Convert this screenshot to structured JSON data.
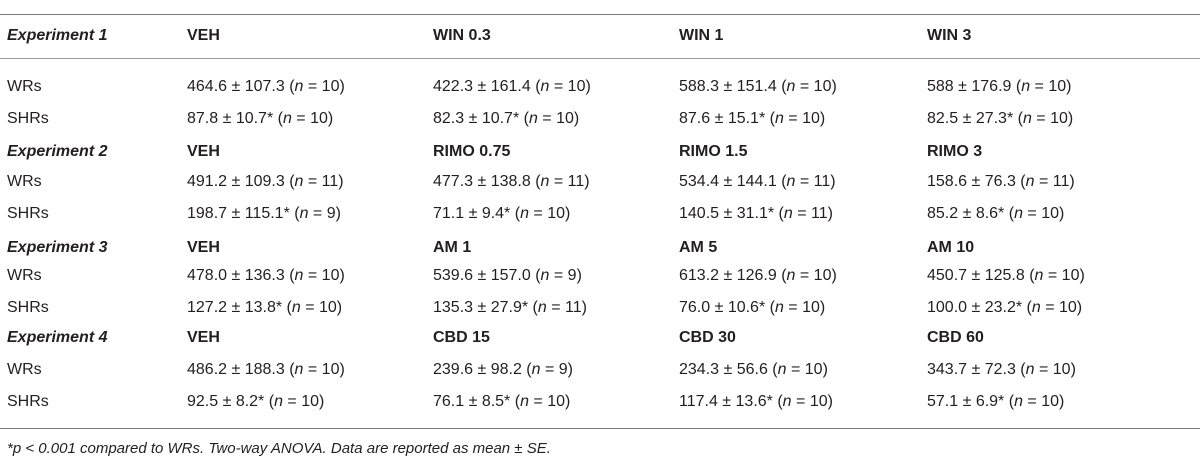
{
  "table": {
    "blocks": [
      {
        "experiment": "Experiment 1",
        "headers": [
          "VEH",
          "WIN 0.3",
          "WIN 1",
          "WIN 3"
        ],
        "rows": [
          {
            "label": "WRs",
            "cells": [
              {
                "v": "464.6 ± 107.3 (",
                "n": "n",
                "r": " = 10)"
              },
              {
                "v": "422.3 ± 161.4 (",
                "n": "n",
                "r": " = 10)"
              },
              {
                "v": "588.3 ± 151.4 (",
                "n": "n",
                "r": " = 10)"
              },
              {
                "v": "588 ± 176.9 (",
                "n": "n",
                "r": " = 10)"
              }
            ]
          },
          {
            "label": "SHRs",
            "cells": [
              {
                "v": "87.8 ± 10.7* (",
                "n": "n",
                "r": " = 10)"
              },
              {
                "v": "82.3 ± 10.7* (",
                "n": "n",
                "r": " = 10)"
              },
              {
                "v": "87.6 ± 15.1* (",
                "n": "n",
                "r": " = 10)"
              },
              {
                "v": "82.5 ± 27.3* (",
                "n": "n",
                "r": " = 10)"
              }
            ]
          }
        ]
      },
      {
        "experiment": "Experiment 2",
        "headers": [
          "VEH",
          "RIMO 0.75",
          "RIMO 1.5",
          "RIMO 3"
        ],
        "rows": [
          {
            "label": "WRs",
            "cells": [
              {
                "v": "491.2 ± 109.3 (",
                "n": "n",
                "r": " = 11)"
              },
              {
                "v": "477.3 ± 138.8 (",
                "n": "n",
                "r": " = 11)"
              },
              {
                "v": "534.4 ± 144.1 (",
                "n": "n",
                "r": " = 11)"
              },
              {
                "v": "158.6 ± 76.3 (",
                "n": "n",
                "r": " = 11)"
              }
            ]
          },
          {
            "label": "SHRs",
            "cells": [
              {
                "v": "198.7 ± 115.1* (",
                "n": "n",
                "r": " = 9)"
              },
              {
                "v": "71.1 ± 9.4* (",
                "n": "n",
                "r": " = 10)"
              },
              {
                "v": "140.5 ± 31.1* (",
                "n": "n",
                "r": " = 11)"
              },
              {
                "v": "85.2 ± 8.6* (",
                "n": "n",
                "r": " = 10)"
              }
            ]
          }
        ]
      },
      {
        "experiment": "Experiment 3",
        "headers": [
          "VEH",
          "AM 1",
          "AM 5",
          "AM 10"
        ],
        "rows": [
          {
            "label": "WRs",
            "cells": [
              {
                "v": "478.0 ± 136.3 (",
                "n": "n",
                "r": " = 10)"
              },
              {
                "v": "539.6 ± 157.0 (",
                "n": "n",
                "r": " = 9)"
              },
              {
                "v": "613.2 ± 126.9 (",
                "n": "n",
                "r": " = 10)"
              },
              {
                "v": "450.7 ± 125.8 (",
                "n": "n",
                "r": " = 10)"
              }
            ]
          },
          {
            "label": "SHRs",
            "cells": [
              {
                "v": "127.2 ± 13.8* (",
                "n": "n",
                "r": " = 10)"
              },
              {
                "v": "135.3 ± 27.9* (",
                "n": "n",
                "r": " = 11)"
              },
              {
                "v": "76.0 ± 10.6* (",
                "n": "n",
                "r": " = 10)"
              },
              {
                "v": "100.0 ± 23.2* (",
                "n": "n",
                "r": " = 10)"
              }
            ]
          }
        ]
      },
      {
        "experiment": "Experiment 4",
        "headers": [
          "VEH",
          "CBD 15",
          "CBD 30",
          "CBD 60"
        ],
        "rows": [
          {
            "label": "WRs",
            "cells": [
              {
                "v": "486.2 ± 188.3 (",
                "n": "n",
                "r": " = 10)"
              },
              {
                "v": "239.6 ± 98.2 (",
                "n": "n",
                "r": " = 9)"
              },
              {
                "v": "234.3 ± 56.6 (",
                "n": "n",
                "r": " = 10)"
              },
              {
                "v": "343.7 ± 72.3 (",
                "n": "n",
                "r": " = 10)"
              }
            ]
          },
          {
            "label": "SHRs",
            "cells": [
              {
                "v": "92.5 ± 8.2* (",
                "n": "n",
                "r": " = 10)"
              },
              {
                "v": "76.1 ± 8.5* (",
                "n": "n",
                "r": " = 10)"
              },
              {
                "v": "117.4 ± 13.6* (",
                "n": "n",
                "r": " = 10)"
              },
              {
                "v": "57.1 ± 6.9* (",
                "n": "n",
                "r": " = 10)"
              }
            ]
          }
        ]
      }
    ],
    "footnote": "*p < 0.001 compared to WRs. Two-way ANOVA. Data are reported as mean ± SE."
  }
}
